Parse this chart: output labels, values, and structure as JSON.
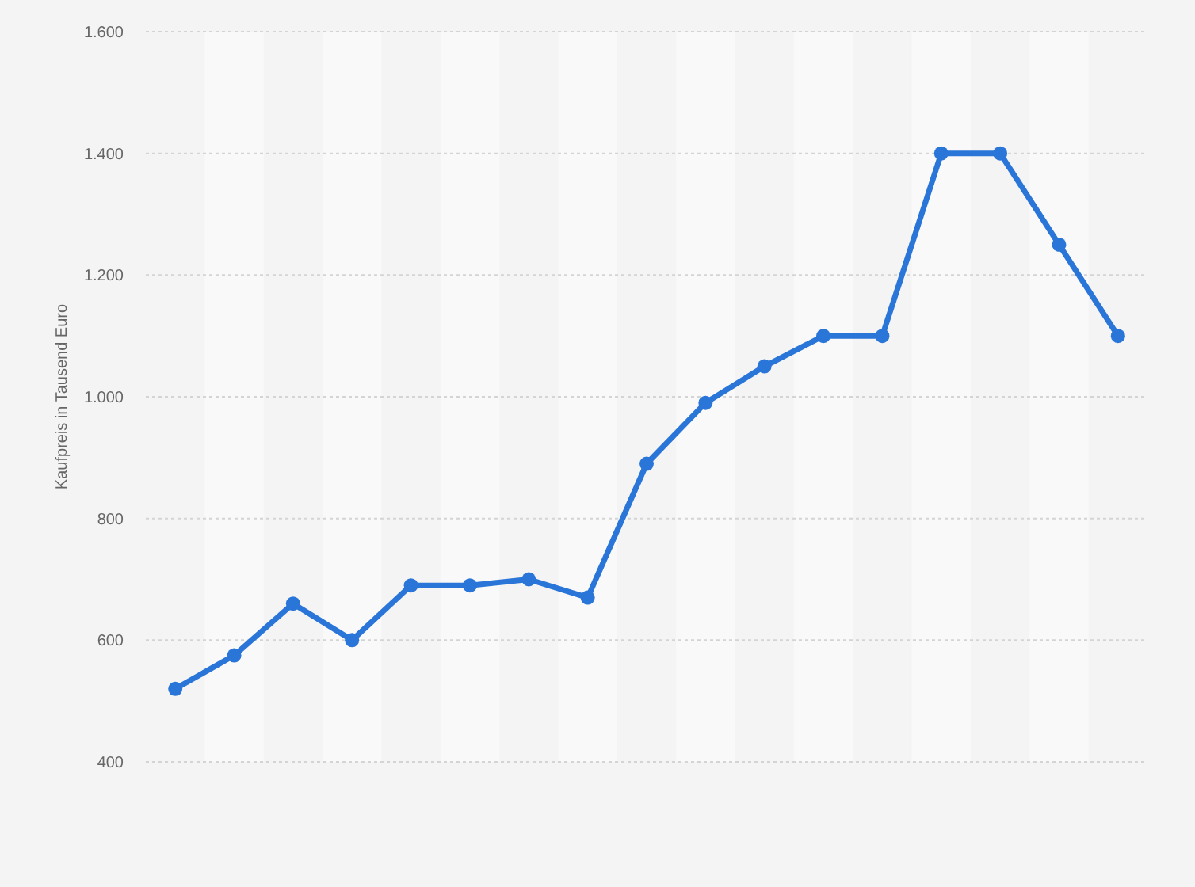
{
  "chart_data": {
    "type": "line",
    "ylabel": "Kaufpreis in Tausend Euro",
    "categories": [
      null,
      null,
      null,
      null,
      null,
      null,
      null,
      null,
      null,
      null,
      null,
      null,
      null,
      null,
      null,
      null,
      null
    ],
    "series": [
      {
        "color": "#2a75d8",
        "values": [
          520,
          575,
          660,
          600,
          690,
          690,
          700,
          670,
          890,
          990,
          1050,
          1100,
          1100,
          1400,
          1400,
          1250,
          1100
        ]
      }
    ],
    "ylim": [
      400,
      1600
    ],
    "yticks": [
      {
        "value": 400,
        "label": "400"
      },
      {
        "value": 600,
        "label": "600"
      },
      {
        "value": 800,
        "label": "800"
      },
      {
        "value": 1000,
        "label": "1.000"
      },
      {
        "value": 1200,
        "label": "1.200"
      },
      {
        "value": 1400,
        "label": "1.400"
      },
      {
        "value": 1600,
        "label": "1.600"
      }
    ],
    "grid": "y",
    "marker": "circle",
    "line_style": "solid"
  }
}
